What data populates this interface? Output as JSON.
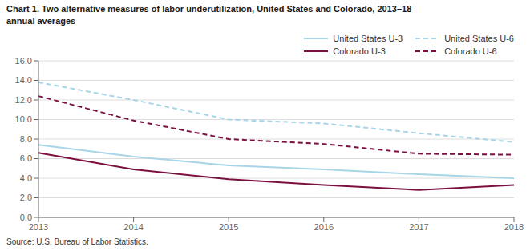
{
  "chart_data": {
    "type": "line",
    "title": "Chart 1. Two alternative measures of labor underutilization, United States and Colorado, 2013–18\nannual averages",
    "annotations": [
      "Source: U.S. Bureau of Labor Statistics."
    ],
    "categories": [
      "2013",
      "2014",
      "2015",
      "2016",
      "2017",
      "2018"
    ],
    "series": [
      {
        "name": "United States  U-3",
        "color": "#a8d4e8",
        "line_style": "solid",
        "values": [
          7.4,
          6.2,
          5.3,
          4.9,
          4.4,
          4.0
        ]
      },
      {
        "name": "United States  U-6",
        "color": "#a8d4e8",
        "line_style": "dashed",
        "values": [
          13.8,
          12.0,
          10.0,
          9.6,
          8.6,
          7.7
        ]
      },
      {
        "name": "Colorado  U-3",
        "color": "#7b1040",
        "line_style": "solid",
        "values": [
          6.6,
          4.9,
          3.9,
          3.3,
          2.8,
          3.3
        ]
      },
      {
        "name": "Colorado  U-6",
        "color": "#7b1040",
        "line_style": "dashed",
        "values": [
          12.4,
          9.9,
          8.0,
          7.5,
          6.5,
          6.4
        ]
      }
    ],
    "ylim": [
      0,
      16
    ],
    "yticks": [
      {
        "value": 0,
        "label": "0.0"
      },
      {
        "value": 2,
        "label": "2.0"
      },
      {
        "value": 4,
        "label": "4.0"
      },
      {
        "value": 6,
        "label": "6.0"
      },
      {
        "value": 8,
        "label": "8.0"
      },
      {
        "value": 10,
        "label": "10.0"
      },
      {
        "value": 12,
        "label": "12.0"
      },
      {
        "value": 14,
        "label": "14.0"
      },
      {
        "value": 16,
        "label": "16.0"
      }
    ],
    "grid": true,
    "legend": "upper right"
  }
}
